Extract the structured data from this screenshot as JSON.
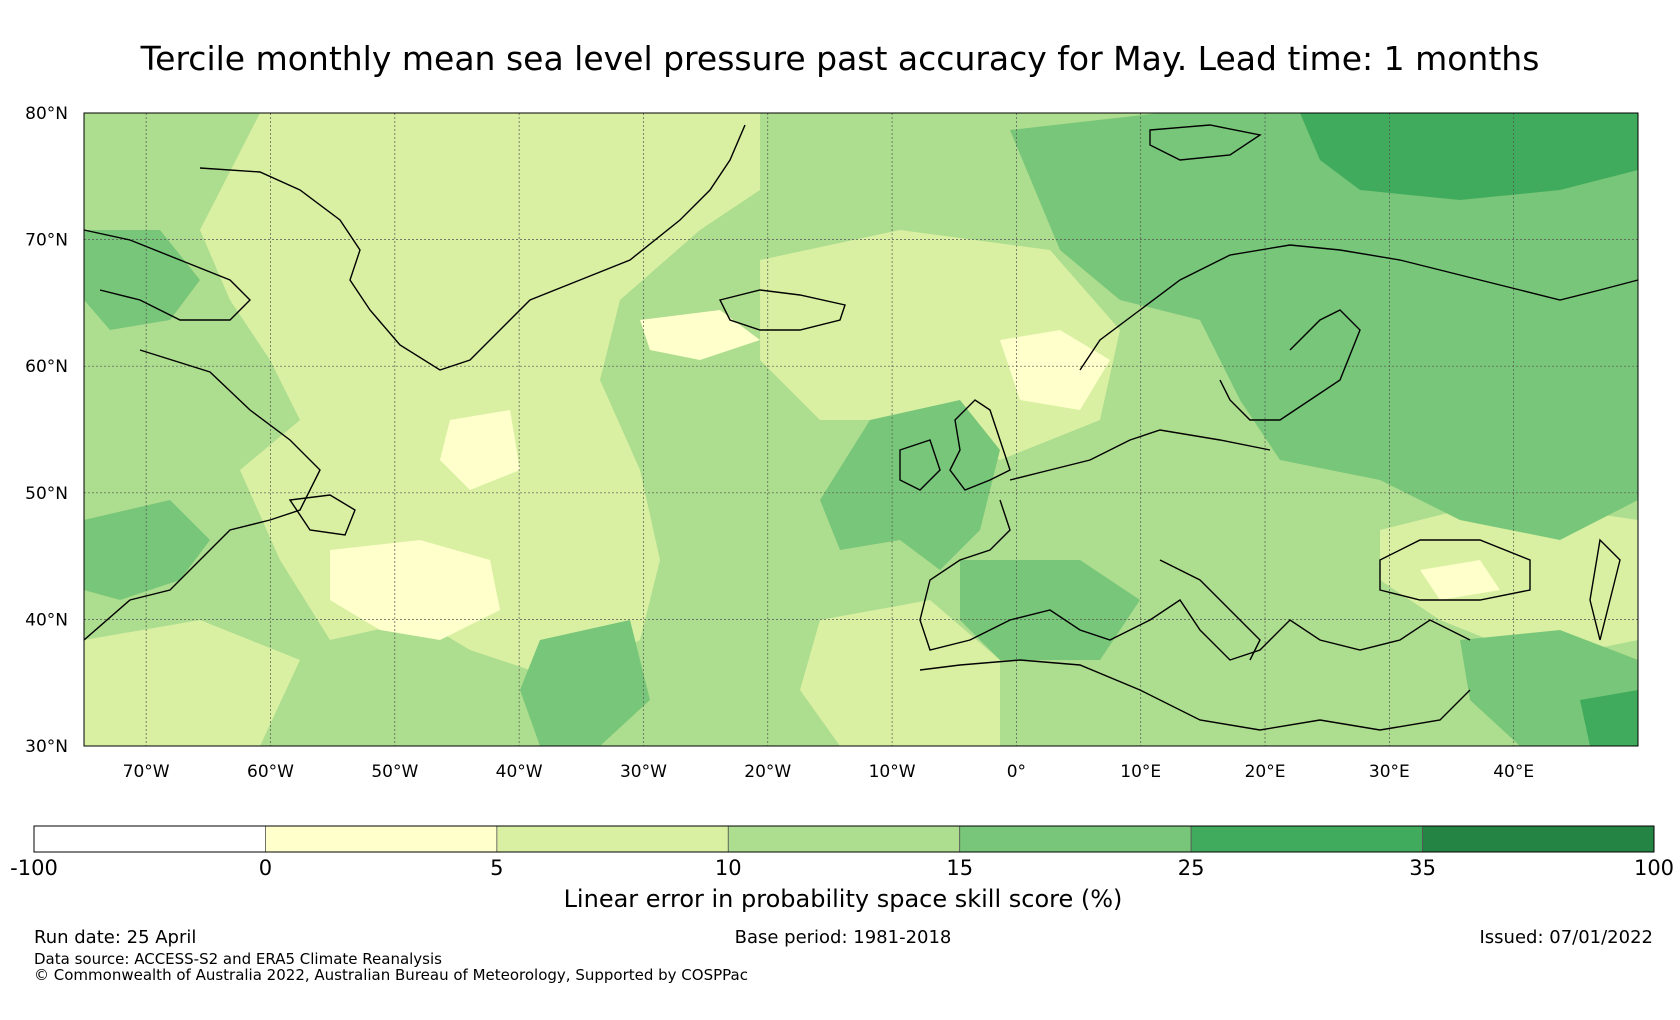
{
  "title": "Tercile monthly mean sea level pressure past accuracy for May. Lead time: 1 months",
  "map": {
    "lat_range": [
      30,
      80
    ],
    "lon_range": [
      -75,
      50
    ],
    "lat_labels": [
      "30°N",
      "40°N",
      "50°N",
      "60°N",
      "70°N",
      "80°N"
    ],
    "lat_values": [
      30,
      40,
      50,
      60,
      70,
      80
    ],
    "lon_labels": [
      "70°W",
      "60°W",
      "50°W",
      "40°W",
      "30°W",
      "20°W",
      "10°W",
      "0°",
      "10°E",
      "20°E",
      "30°E",
      "40°E"
    ],
    "lon_values": [
      -70,
      -60,
      -50,
      -40,
      -30,
      -20,
      -10,
      0,
      10,
      20,
      30,
      40
    ],
    "grid": true,
    "land_outline_color": "#000000",
    "skill_regions_description_free": true
  },
  "colorbar": {
    "boundaries": [
      "-100",
      "0",
      "5",
      "10",
      "15",
      "25",
      "35",
      "100"
    ],
    "colors": [
      "#ffffff",
      "#ffffcc",
      "#d9f0a3",
      "#addd8e",
      "#78c679",
      "#41ab5d",
      "#238443"
    ],
    "label": "Linear error in probability space skill score (%)"
  },
  "footer": {
    "run_date": "Run date: 25 April",
    "base_period": "Base period: 1981-2018",
    "issued": "Issued: 07/01/2022",
    "data_source": "Data source: ACCESS-S2 and ERA5 Climate Reanalysis",
    "copyright": "© Commonwealth of Australia 2022, Australian Bureau of Meteorology, Supported by COSPPac"
  }
}
